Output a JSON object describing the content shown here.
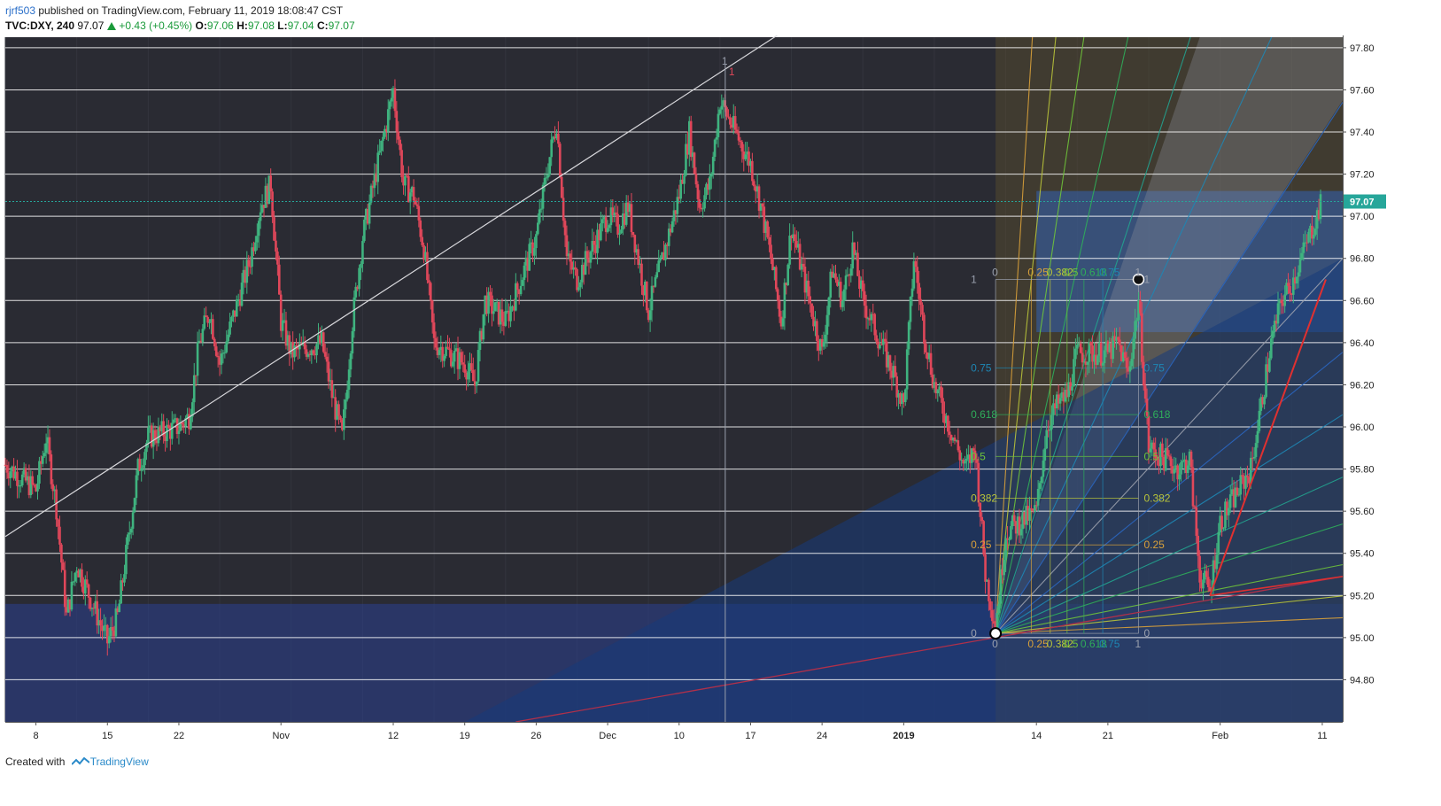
{
  "header": {
    "user": "rjrf503",
    "published": "published on TradingView.com, February 11, 2019 18:08:47 CST",
    "symbol": "TVC:DXY, 240",
    "last": "97.07",
    "change": "+0.43 (+0.45%)",
    "o_label": "O:",
    "o_value": "97.06",
    "h_label": "H:",
    "h_value": "97.08",
    "l_label": "L:",
    "l_value": "97.04",
    "c_label": "C:",
    "c_value": "97.07"
  },
  "footer": {
    "created_with": "Created with",
    "brand": "TradingView"
  },
  "colors": {
    "background": "#2a2b33",
    "up": "#3fb37f",
    "down": "#e0475a",
    "last_price": "#26a69a",
    "grid": "#ffffff"
  },
  "chart_data": {
    "type": "candlestick",
    "timeframe": "240",
    "ylim": [
      94.6,
      97.85
    ],
    "y_ticks": [
      94.8,
      95.0,
      95.2,
      95.4,
      95.6,
      95.8,
      96.0,
      96.2,
      96.4,
      96.6,
      96.8,
      97.0,
      97.2,
      97.4,
      97.6,
      97.8
    ],
    "x_ticks": [
      "8",
      "15",
      "22",
      "Nov",
      "12",
      "19",
      "26",
      "Dec",
      "10",
      "17",
      "24",
      "2019",
      "14",
      "21",
      "Feb",
      "11"
    ],
    "x_tick_dates": [
      "2018-10-08",
      "2018-10-15",
      "2018-10-22",
      "2018-11-01",
      "2018-11-12",
      "2018-11-19",
      "2018-11-26",
      "2018-12-03",
      "2018-12-10",
      "2018-12-17",
      "2018-12-24",
      "2019-01-01",
      "2019-01-14",
      "2019-01-21",
      "2019-02-01",
      "2019-02-11"
    ],
    "last_price": "97.07",
    "close_path": [
      [
        "2018-10-05",
        95.82
      ],
      [
        "2018-10-08",
        95.7
      ],
      [
        "2018-10-09",
        95.95
      ],
      [
        "2018-10-10",
        95.62
      ],
      [
        "2018-10-11",
        95.1
      ],
      [
        "2018-10-12",
        95.35
      ],
      [
        "2018-10-15",
        94.98
      ],
      [
        "2018-10-16",
        95.1
      ],
      [
        "2018-10-17",
        95.45
      ],
      [
        "2018-10-18",
        95.8
      ],
      [
        "2018-10-19",
        95.95
      ],
      [
        "2018-10-22",
        96.0
      ],
      [
        "2018-10-23",
        96.05
      ],
      [
        "2018-10-24",
        96.4
      ],
      [
        "2018-10-25",
        96.55
      ],
      [
        "2018-10-26",
        96.3
      ],
      [
        "2018-10-29",
        96.8
      ],
      [
        "2018-10-30",
        97.05
      ],
      [
        "2018-10-31",
        97.15
      ],
      [
        "2018-11-01",
        96.5
      ],
      [
        "2018-11-02",
        96.35
      ],
      [
        "2018-11-05",
        96.4
      ],
      [
        "2018-11-06",
        96.15
      ],
      [
        "2018-11-07",
        95.95
      ],
      [
        "2018-11-08",
        96.5
      ],
      [
        "2018-11-09",
        96.9
      ],
      [
        "2018-11-12",
        97.6
      ],
      [
        "2018-11-13",
        97.15
      ],
      [
        "2018-11-14",
        97.1
      ],
      [
        "2018-11-15",
        96.85
      ],
      [
        "2018-11-16",
        96.4
      ],
      [
        "2018-11-19",
        96.3
      ],
      [
        "2018-11-20",
        96.2
      ],
      [
        "2018-11-21",
        96.6
      ],
      [
        "2018-11-22",
        96.55
      ],
      [
        "2018-11-23",
        96.5
      ],
      [
        "2018-11-26",
        96.9
      ],
      [
        "2018-11-27",
        97.2
      ],
      [
        "2018-11-28",
        97.45
      ],
      [
        "2018-11-29",
        96.8
      ],
      [
        "2018-11-30",
        96.7
      ],
      [
        "2018-12-03",
        97.0
      ],
      [
        "2018-12-04",
        96.95
      ],
      [
        "2018-12-05",
        97.05
      ],
      [
        "2018-12-06",
        96.8
      ],
      [
        "2018-12-07",
        96.55
      ],
      [
        "2018-12-10",
        97.1
      ],
      [
        "2018-12-11",
        97.4
      ],
      [
        "2018-12-12",
        97.05
      ],
      [
        "2018-12-13",
        97.15
      ],
      [
        "2018-12-14",
        97.55
      ],
      [
        "2018-12-17",
        97.25
      ],
      [
        "2018-12-18",
        97.05
      ],
      [
        "2018-12-19",
        96.8
      ],
      [
        "2018-12-20",
        96.5
      ],
      [
        "2018-12-21",
        96.95
      ],
      [
        "2018-12-24",
        96.35
      ],
      [
        "2018-12-25",
        96.75
      ],
      [
        "2018-12-26",
        96.6
      ],
      [
        "2018-12-27",
        96.85
      ],
      [
        "2018-12-28",
        96.6
      ],
      [
        "2018-12-31",
        96.25
      ],
      [
        "2019-01-01",
        96.1
      ],
      [
        "2019-01-02",
        96.8
      ],
      [
        "2019-01-03",
        96.45
      ],
      [
        "2019-01-04",
        96.2
      ],
      [
        "2019-01-07",
        95.8
      ],
      [
        "2019-01-08",
        95.9
      ],
      [
        "2019-01-09",
        95.3
      ],
      [
        "2019-01-10",
        95.05
      ],
      [
        "2019-01-11",
        95.5
      ],
      [
        "2019-01-14",
        95.6
      ],
      [
        "2019-01-15",
        96.0
      ],
      [
        "2019-01-16",
        96.1
      ],
      [
        "2019-01-17",
        96.15
      ],
      [
        "2019-01-18",
        96.35
      ],
      [
        "2019-01-21",
        96.35
      ],
      [
        "2019-01-22",
        96.4
      ],
      [
        "2019-01-23",
        96.25
      ],
      [
        "2019-01-24",
        96.6
      ],
      [
        "2019-01-25",
        95.9
      ],
      [
        "2019-01-28",
        95.8
      ],
      [
        "2019-01-29",
        95.85
      ],
      [
        "2019-01-30",
        95.3
      ],
      [
        "2019-01-31",
        95.22
      ],
      [
        "2019-02-01",
        95.55
      ],
      [
        "2019-02-04",
        95.8
      ],
      [
        "2019-02-05",
        96.1
      ],
      [
        "2019-02-06",
        96.4
      ],
      [
        "2019-02-07",
        96.6
      ],
      [
        "2019-02-08",
        96.68
      ],
      [
        "2019-02-11",
        97.07
      ]
    ],
    "annotations": {
      "fib_labels": [
        "0",
        "0.25",
        "0.382",
        "0.5",
        "0.618",
        "0.75",
        "1"
      ],
      "marks": [
        "1",
        "1"
      ]
    }
  }
}
